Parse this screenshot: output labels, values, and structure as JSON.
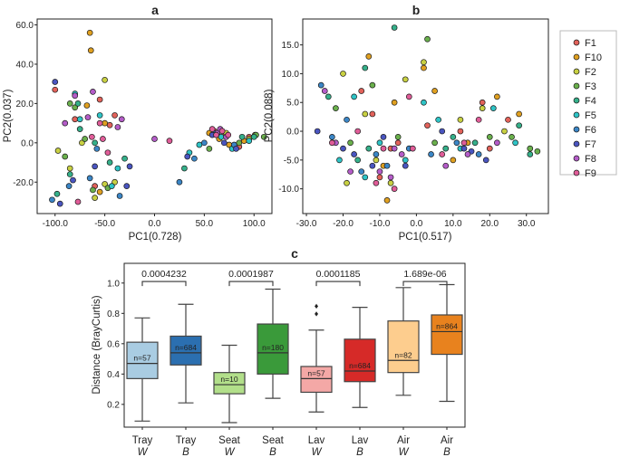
{
  "chart_data": [
    {
      "panel": "a",
      "type": "scatter",
      "title": "a",
      "xlabel": "PC1(0.728)",
      "ylabel": "PC2(0.037)",
      "xlim": [
        -118,
        118
      ],
      "ylim": [
        -36,
        63
      ],
      "xticks": [
        -100,
        -50,
        0,
        50,
        100
      ],
      "xtick_labels": [
        "-100.0",
        "-50.0",
        "0.0",
        "50.0",
        "100.0"
      ],
      "yticks": [
        -20,
        0,
        20,
        40,
        60
      ],
      "ytick_labels": [
        "-20.0",
        "0.0",
        "20.0",
        "40.0",
        "60.0"
      ],
      "series": [
        {
          "name": "F1",
          "color": "#e2625a",
          "points": [
            [
              -100,
              27
            ],
            [
              -80,
              12
            ],
            [
              -55,
              22
            ],
            [
              -45,
              9
            ],
            [
              -40,
              14
            ],
            [
              -60,
              -22
            ],
            [
              60,
              6
            ],
            [
              85,
              -2
            ],
            [
              95,
              3
            ],
            [
              70,
              4
            ]
          ]
        },
        {
          "name": "F10",
          "color": "#e0a020",
          "points": [
            [
              -65,
              56
            ],
            [
              -64,
              47
            ],
            [
              -68,
              19
            ],
            [
              -55,
              -25
            ],
            [
              -50,
              10
            ],
            [
              75,
              -1
            ],
            [
              90,
              1
            ],
            [
              101,
              4
            ],
            [
              65,
              2
            ],
            [
              55,
              5
            ]
          ]
        },
        {
          "name": "F2",
          "color": "#c8d042",
          "points": [
            [
              -97,
              -4
            ],
            [
              -85,
              -13
            ],
            [
              -73,
              0
            ],
            [
              -50,
              -21
            ],
            [
              -60,
              -28
            ],
            [
              -40,
              -20
            ],
            [
              80,
              -2
            ],
            [
              95,
              2
            ],
            [
              72,
              5
            ],
            [
              -50,
              32
            ]
          ]
        },
        {
          "name": "F3",
          "color": "#6ab04c",
          "points": [
            [
              -90,
              -7
            ],
            [
              -80,
              18
            ],
            [
              -70,
              2
            ],
            [
              -62,
              -24
            ],
            [
              -47,
              -23
            ],
            [
              55,
              -3
            ],
            [
              85,
              0
            ],
            [
              102,
              4
            ],
            [
              110,
              3
            ],
            [
              -85,
              20
            ]
          ]
        },
        {
          "name": "F4",
          "color": "#35b08a",
          "points": [
            [
              -98,
              -26
            ],
            [
              -85,
              -16
            ],
            [
              -75,
              7
            ],
            [
              -60,
              0
            ],
            [
              -45,
              -10
            ],
            [
              30,
              -13
            ],
            [
              88,
              3
            ],
            [
              100,
              3
            ],
            [
              -30,
              -8
            ],
            [
              -77,
              20
            ]
          ]
        },
        {
          "name": "F5",
          "color": "#2ec4c6",
          "points": [
            [
              -80,
              25
            ],
            [
              -75,
              12
            ],
            [
              -55,
              14
            ],
            [
              -43,
              -22
            ],
            [
              -37,
              -13
            ],
            [
              45,
              -1
            ],
            [
              78,
              -3
            ],
            [
              95,
              1
            ],
            [
              67,
              3
            ],
            [
              35,
              -5
            ]
          ]
        },
        {
          "name": "F6",
          "color": "#3b86c6",
          "points": [
            [
              -103,
              -29
            ],
            [
              -86,
              -22
            ],
            [
              -65,
              -18
            ],
            [
              -58,
              -3
            ],
            [
              -35,
              -27
            ],
            [
              50,
              0
            ],
            [
              80,
              -1
            ],
            [
              60,
              5
            ],
            [
              40,
              -8
            ],
            [
              25,
              -20
            ]
          ]
        },
        {
          "name": "F7",
          "color": "#4a55c0",
          "points": [
            [
              -100,
              31
            ],
            [
              -95,
              -31
            ],
            [
              -82,
              -19
            ],
            [
              -60,
              -12
            ],
            [
              -25,
              -12
            ],
            [
              -28,
              -22
            ],
            [
              58,
              4
            ],
            [
              82,
              -3
            ],
            [
              70,
              0
            ],
            [
              33,
              -7
            ]
          ]
        },
        {
          "name": "F8",
          "color": "#b45cc8",
          "points": [
            [
              -90,
              10
            ],
            [
              -80,
              24
            ],
            [
              -67,
              13
            ],
            [
              -37,
              8
            ],
            [
              -62,
              26
            ],
            [
              0,
              2
            ],
            [
              63,
              5
            ],
            [
              66,
              7
            ],
            [
              72,
              3
            ],
            [
              -33,
              12
            ]
          ]
        },
        {
          "name": "F9",
          "color": "#e05c98",
          "points": [
            [
              -77,
              -30
            ],
            [
              -63,
              3
            ],
            [
              -52,
              2
            ],
            [
              -47,
              -5
            ],
            [
              15,
              1
            ],
            [
              62,
              4
            ],
            [
              68,
              6
            ],
            [
              58,
              7
            ],
            [
              74,
              4
            ],
            [
              -55,
              10
            ]
          ]
        }
      ]
    },
    {
      "panel": "b",
      "type": "scatter",
      "title": "b",
      "xlabel": "PC1(0.517)",
      "ylabel": "PC2(0.088)",
      "xlim": [
        -31,
        36
      ],
      "ylim": [
        -14.3,
        19.5
      ],
      "xticks": [
        -30,
        -20,
        -10,
        0,
        10,
        20,
        30
      ],
      "xtick_labels": [
        "-30.0",
        "-20.0",
        "-10.0",
        "0.0",
        "10.0",
        "20.0",
        "30.0"
      ],
      "yticks": [
        -10,
        -5,
        0,
        5,
        10,
        15
      ],
      "ytick_labels": [
        "-10.0",
        "-5.0",
        "0.0",
        "5.0",
        "10.0",
        "15.0"
      ],
      "series": [
        {
          "name": "F1",
          "color": "#e2625a",
          "points": [
            [
              -10,
              -8
            ],
            [
              -5,
              -2
            ],
            [
              -7,
              -3
            ],
            [
              3,
              1
            ],
            [
              12,
              0
            ],
            [
              18,
              5
            ],
            [
              25,
              2
            ],
            [
              20,
              -3
            ],
            [
              -12,
              3
            ],
            [
              -15,
              7
            ]
          ]
        },
        {
          "name": "F10",
          "color": "#e0a020",
          "points": [
            [
              -13,
              13
            ],
            [
              -9,
              -6
            ],
            [
              -8,
              -12
            ],
            [
              2,
              11
            ],
            [
              5,
              7
            ],
            [
              14,
              -2
            ],
            [
              22,
              6
            ],
            [
              28,
              3
            ],
            [
              -6,
              5
            ],
            [
              10,
              -5
            ]
          ]
        },
        {
          "name": "F2",
          "color": "#c8d042",
          "points": [
            [
              -14,
              3
            ],
            [
              -11,
              -5
            ],
            [
              -7,
              -9
            ],
            [
              -3,
              9
            ],
            [
              2,
              12
            ],
            [
              18,
              4
            ],
            [
              24,
              0
            ],
            [
              -19,
              -9
            ],
            [
              -20,
              10
            ],
            [
              12,
              2
            ]
          ]
        },
        {
          "name": "F3",
          "color": "#6ab04c",
          "points": [
            [
              -22,
              4
            ],
            [
              -18,
              -2
            ],
            [
              -5,
              -1
            ],
            [
              3,
              16
            ],
            [
              5,
              -2
            ],
            [
              20,
              -1
            ],
            [
              31,
              -3
            ],
            [
              33,
              -3.5
            ],
            [
              26,
              -1
            ],
            [
              -12,
              8
            ]
          ]
        },
        {
          "name": "F4",
          "color": "#35b08a",
          "points": [
            [
              -24,
              6
            ],
            [
              -16,
              -5
            ],
            [
              -13,
              -3
            ],
            [
              -6,
              18
            ],
            [
              8,
              -3
            ],
            [
              16,
              -2
            ],
            [
              28,
              1
            ],
            [
              31,
              -4
            ],
            [
              -14,
              11
            ],
            [
              10,
              -1
            ]
          ]
        },
        {
          "name": "F5",
          "color": "#2ec4c6",
          "points": [
            [
              -21,
              -5
            ],
            [
              -17,
              6
            ],
            [
              -10,
              -2
            ],
            [
              -3,
              -5
            ],
            [
              6,
              2
            ],
            [
              12,
              -3
            ],
            [
              21,
              4
            ],
            [
              27,
              -2
            ],
            [
              -14,
              -8
            ],
            [
              2,
              5
            ]
          ]
        },
        {
          "name": "F6",
          "color": "#3b86c6",
          "points": [
            [
              -26,
              8
            ],
            [
              -23,
              -1
            ],
            [
              -19,
              2
            ],
            [
              -11,
              -4
            ],
            [
              -8,
              -6
            ],
            [
              4,
              -4
            ],
            [
              11,
              -2
            ],
            [
              17,
              -4
            ],
            [
              -15,
              -7
            ],
            [
              -2,
              -3
            ]
          ]
        },
        {
          "name": "F7",
          "color": "#4a55c0",
          "points": [
            [
              -27,
              0
            ],
            [
              -20,
              -3
            ],
            [
              -12,
              -6
            ],
            [
              -9,
              -1
            ],
            [
              -3,
              -6
            ],
            [
              7,
              0
            ],
            [
              13,
              -3
            ],
            [
              15,
              -3.5
            ],
            [
              19,
              -5
            ],
            [
              -17,
              -4
            ]
          ]
        },
        {
          "name": "F8",
          "color": "#b45cc8",
          "points": [
            [
              -25,
              7
            ],
            [
              -18,
              -7
            ],
            [
              -10,
              -7
            ],
            [
              -7,
              -8
            ],
            [
              -4,
              -4
            ],
            [
              8,
              -6
            ],
            [
              14,
              -4
            ],
            [
              22,
              -2
            ],
            [
              -6,
              -3
            ],
            [
              -22,
              -2
            ]
          ]
        },
        {
          "name": "F9",
          "color": "#e05c98",
          "points": [
            [
              -23,
              -2
            ],
            [
              -16,
              0
            ],
            [
              -11,
              -9
            ],
            [
              -6,
              -10
            ],
            [
              -2,
              6
            ],
            [
              7,
              -4
            ],
            [
              13,
              -2
            ],
            [
              17,
              2
            ],
            [
              -9,
              -3
            ],
            [
              -1,
              -3
            ]
          ]
        }
      ]
    },
    {
      "panel": "c",
      "type": "box",
      "title": "c",
      "ylabel": "Distance (BrayCurtis)",
      "ylim": [
        0.05,
        1.13
      ],
      "yticks": [
        0.2,
        0.4,
        0.6,
        0.8,
        1.0
      ],
      "ytick_labels": [
        "0.2",
        "0.4",
        "0.6",
        "0.8",
        "1.0"
      ],
      "boxes": [
        {
          "cat": "Tray",
          "sub": "W",
          "n": "n=57",
          "color": "#a9cce2",
          "wlo": 0.09,
          "q1": 0.37,
          "med": 0.47,
          "q3": 0.61,
          "whi": 0.77,
          "outliers": []
        },
        {
          "cat": "Tray",
          "sub": "B",
          "n": "n=684",
          "color": "#2b6fb0",
          "wlo": 0.21,
          "q1": 0.46,
          "med": 0.54,
          "q3": 0.65,
          "whi": 0.86,
          "outliers": []
        },
        {
          "cat": "Seat",
          "sub": "W",
          "n": "n=10",
          "color": "#b2df8a",
          "wlo": 0.08,
          "q1": 0.27,
          "med": 0.33,
          "q3": 0.41,
          "whi": 0.59,
          "outliers": []
        },
        {
          "cat": "Seat",
          "sub": "B",
          "n": "n=180",
          "color": "#3a9a3a",
          "wlo": 0.24,
          "q1": 0.4,
          "med": 0.54,
          "q3": 0.73,
          "whi": 0.96,
          "outliers": []
        },
        {
          "cat": "Lav",
          "sub": "W",
          "n": "n=57",
          "color": "#f4a8a6",
          "wlo": 0.15,
          "q1": 0.28,
          "med": 0.37,
          "q3": 0.45,
          "whi": 0.69,
          "outliers": [
            0.8,
            0.85
          ]
        },
        {
          "cat": "Lav",
          "sub": "B",
          "n": "n=684",
          "color": "#d62a28",
          "wlo": 0.18,
          "q1": 0.35,
          "med": 0.42,
          "q3": 0.63,
          "whi": 0.84,
          "outliers": []
        },
        {
          "cat": "Air",
          "sub": "W",
          "n": "n=82",
          "color": "#fdcd8e",
          "wlo": 0.26,
          "q1": 0.41,
          "med": 0.49,
          "q3": 0.75,
          "whi": 0.97,
          "outliers": []
        },
        {
          "cat": "Air",
          "sub": "B",
          "n": "n=864",
          "color": "#e8821e",
          "wlo": 0.22,
          "q1": 0.53,
          "med": 0.68,
          "q3": 0.79,
          "whi": 0.99,
          "outliers": []
        }
      ],
      "comparisons": [
        {
          "pair": [
            0,
            1
          ],
          "label": "0.0004232",
          "y": 1.01
        },
        {
          "pair": [
            2,
            3
          ],
          "label": "0.0001987",
          "y": 1.01
        },
        {
          "pair": [
            4,
            5
          ],
          "label": "0.0001185",
          "y": 1.01
        },
        {
          "pair": [
            6,
            7
          ],
          "label": "1.689e-06",
          "y": 1.01
        }
      ]
    }
  ],
  "legend": {
    "entries": [
      "F1",
      "F10",
      "F2",
      "F3",
      "F4",
      "F5",
      "F6",
      "F7",
      "F8",
      "F9"
    ],
    "colors": [
      "#e2625a",
      "#e0a020",
      "#c8d042",
      "#6ab04c",
      "#35b08a",
      "#2ec4c6",
      "#3b86c6",
      "#4a55c0",
      "#b45cc8",
      "#e05c98"
    ]
  }
}
